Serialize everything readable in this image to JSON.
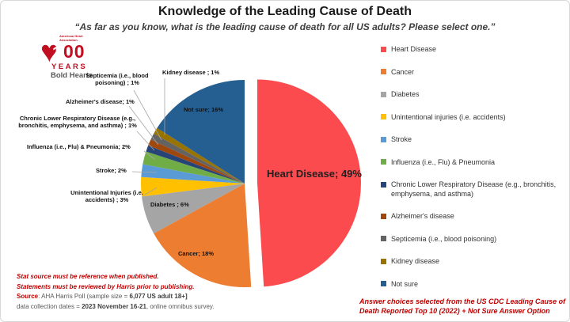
{
  "slide": {
    "title": "Knowledge of the Leading Cause of Death",
    "subtitle": "“As far as you know, what is the leading cause of death for all US adults? Please select one.”"
  },
  "logo": {
    "org": "American Heart Association.",
    "number_white": "1",
    "number_red": "00",
    "years": "YEARS",
    "tagline": "Bold Hearts",
    "brand_red": "#C10E21",
    "heart_glyph": "♥"
  },
  "chart_data": {
    "type": "pie",
    "title": "Knowledge of the Leading Cause of Death",
    "categories": [
      "Heart Disease",
      "Cancer",
      "Diabetes",
      "Unintentional injuries (i.e. accidents)",
      "Stroke",
      "Influenza (i.e., Flu) & Pneumonia",
      "Chronic Lower Respiratory Disease (e.g., bronchitis, emphysema, and asthma)",
      "Alzheimer's disease",
      "Septicemia (i.e., blood poisoning)",
      "Kidney disease",
      "Not sure"
    ],
    "values": [
      49,
      18,
      6,
      3,
      2,
      2,
      1,
      1,
      1,
      1,
      16
    ],
    "unit": "%",
    "colors": [
      "#FB4B4E",
      "#ED7D31",
      "#A5A5A5",
      "#FFC000",
      "#5B9BD5",
      "#70AD47",
      "#264478",
      "#9E480E",
      "#636363",
      "#997300",
      "#255E91"
    ],
    "slice_labels": [
      "Heart Disease; 49%",
      "Cancer; 18%",
      "Diabetes ; 6%",
      "Unintentional Injuries (i.e. accidents) ; 3%",
      "Stroke; 2%",
      "Influenza (i.e., Flu) & Pneumonia; 2%",
      "Chronic Lower Respiratory Disease (e.g., bronchitis, emphysema, and asthma) ; 1%",
      "Alzheimer's disease; 1%",
      "Septicemia (i.e., blood poisoning) ; 1%",
      "Kidney disease ; 1%",
      "Not sure; 16%"
    ],
    "exploded_index": 0,
    "start_angle_deg": 0,
    "direction": "clockwise",
    "legend_position": "right",
    "grid": false
  },
  "footnotes": {
    "line1": "Stat source must be reference when published.",
    "line2": "Statements must be reviewed by Harris prior to publishing.",
    "source_label": "Source",
    "source_mid": ": AHA Harris Poll (sample size = ",
    "source_bold": "6,077 US adult 18+]",
    "dates_prefix": "data collection dates = ",
    "dates_bold": "2023 November 16-21",
    "dates_suffix": ", online omnibus survey."
  },
  "answer_note": "Answer choices selected from the US CDC Leading Cause of Death Reported Top 10 (2022) + Not Sure Answer Option"
}
